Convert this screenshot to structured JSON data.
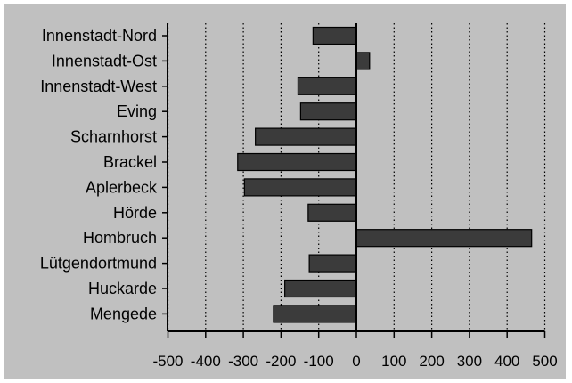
{
  "chart_data": {
    "type": "bar",
    "orientation": "horizontal",
    "categories": [
      "Innenstadt-Nord",
      "Innenstadt-Ost",
      "Innenstadt-West",
      "Eving",
      "Scharnhorst",
      "Brackel",
      "Aplerbeck",
      "Hörde",
      "Hombruch",
      "Lütgendortmund",
      "Huckarde",
      "Mengede"
    ],
    "values": [
      -115,
      35,
      -155,
      -148,
      -268,
      -315,
      -297,
      -128,
      465,
      -125,
      -190,
      -220
    ],
    "xlim": [
      -500,
      500
    ],
    "xticks": [
      -500,
      -400,
      -300,
      -200,
      -100,
      0,
      100,
      200,
      300,
      400,
      500
    ],
    "title": "",
    "xlabel": "",
    "ylabel": "",
    "grid": "vertical dotted",
    "legend": "none"
  },
  "colors": {
    "background": "#ffffff",
    "plot_area": "#c0c0c0",
    "bar_fill": "#3b3b3b",
    "bar_stroke": "#000000",
    "grid_line": "#000000"
  }
}
